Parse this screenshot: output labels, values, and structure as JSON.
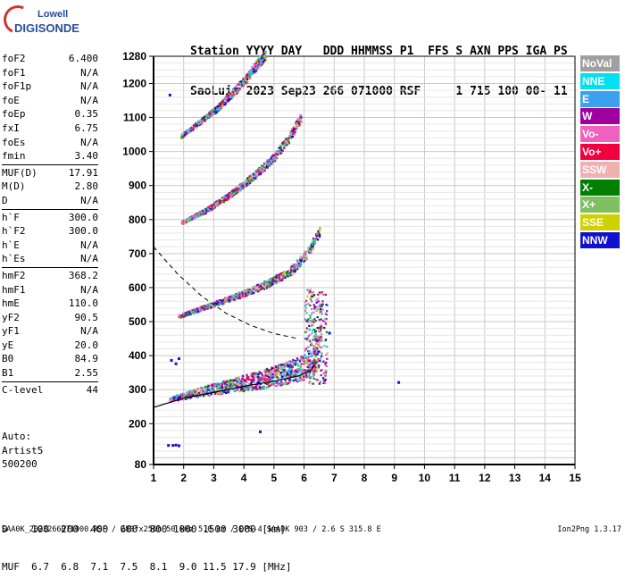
{
  "logo": {
    "line1": "Lowell",
    "line2": "DIGISONDE"
  },
  "header": {
    "line1": "Station YYYY DAY   DDD HHMMSS P1  FFS S AXN PPS IGA PS",
    "line2": "SaoLuis 2023 Sep23 266 071000 RSF     1 715 100 00- 11"
  },
  "params": [
    [
      {
        "k": "foF2",
        "v": "6.400"
      },
      {
        "k": "foF1",
        "v": "N/A"
      },
      {
        "k": "foF1p",
        "v": "N/A"
      },
      {
        "k": "foE",
        "v": "N/A"
      },
      {
        "k": "foEp",
        "v": "0.35"
      },
      {
        "k": "fxI",
        "v": "6.75"
      },
      {
        "k": "foEs",
        "v": "N/A"
      },
      {
        "k": "fmin",
        "v": "3.40"
      }
    ],
    [
      {
        "k": "MUF(D)",
        "v": "17.91"
      },
      {
        "k": "M(D)",
        "v": "2.80"
      },
      {
        "k": "D",
        "v": "N/A"
      }
    ],
    [
      {
        "k": "h`F",
        "v": "300.0"
      },
      {
        "k": "h`F2",
        "v": "300.0"
      },
      {
        "k": "h`E",
        "v": "N/A"
      },
      {
        "k": "h`Es",
        "v": "N/A"
      }
    ],
    [
      {
        "k": "hmF2",
        "v": "368.2"
      },
      {
        "k": "hmF1",
        "v": "N/A"
      },
      {
        "k": "hmE",
        "v": "110.0"
      },
      {
        "k": "yF2",
        "v": "90.5"
      },
      {
        "k": "yF1",
        "v": "N/A"
      },
      {
        "k": "yE",
        "v": "20.0"
      },
      {
        "k": "B0",
        "v": "84.9"
      },
      {
        "k": "B1",
        "v": "2.55"
      }
    ],
    [
      {
        "k": "C-level",
        "v": "44"
      }
    ]
  ],
  "auto": {
    "l1": "Auto:",
    "l2": "Artist5",
    "l3": "500200"
  },
  "legend": [
    {
      "label": "NoVal",
      "color": "#a0a0a0"
    },
    {
      "label": "NNE",
      "color": "#00e0f0"
    },
    {
      "label": "E",
      "color": "#3ca0f0"
    },
    {
      "label": "W",
      "color": "#a000a0"
    },
    {
      "label": "Vo-",
      "color": "#f060c0"
    },
    {
      "label": "Vo+",
      "color": "#f00040"
    },
    {
      "label": "SSW",
      "color": "#f0b0b0"
    },
    {
      "label": "X-",
      "color": "#008000"
    },
    {
      "label": "X+",
      "color": "#80c060"
    },
    {
      "label": "SSE",
      "color": "#d0d000"
    },
    {
      "label": "NNW",
      "color": "#1010d0"
    }
  ],
  "muf_table": {
    "d_label": "D  ",
    "d_values": [
      "100",
      "200",
      "400",
      "600",
      "800",
      "1000",
      "1500",
      "3000"
    ],
    "d_unit": "[km]",
    "muf_label": "MUF",
    "muf_values": [
      "6.7",
      "6.8",
      "7.1",
      "7.5",
      "8.1",
      "9.0",
      "11.5",
      "17.9"
    ],
    "muf_unit": "[MHz]"
  },
  "footer": "SAA0K_2023266071000.RSF / 280fx256h 50 kHz 5.0 km / DPS-4 SAA0K 903 / 2.6 S 315.8 E",
  "ion_version": "Ion2Png 1.3.17",
  "chart_data": {
    "type": "scatter",
    "xlim": [
      1,
      15
    ],
    "x_ticks": [
      1,
      2,
      3,
      4,
      5,
      6,
      7,
      8,
      9,
      10,
      11,
      12,
      13,
      14,
      15
    ],
    "ylim": [
      80,
      1280
    ],
    "y_ticks": [
      80,
      200,
      300,
      400,
      500,
      600,
      700,
      800,
      900,
      1000,
      1100,
      1200,
      1280
    ],
    "grid": true,
    "trace_bands": [
      {
        "name": "F2 O-trace",
        "x": [
          1.5,
          2.5,
          3.5,
          4.5,
          5.5,
          6.2,
          6.45,
          6.55
        ],
        "y": [
          270,
          290,
          305,
          320,
          340,
          360,
          400,
          480
        ]
      },
      {
        "name": "2nd hop",
        "x": [
          1.8,
          2.8,
          3.8,
          4.8,
          5.6,
          6.1,
          6.5
        ],
        "y": [
          515,
          545,
          575,
          610,
          650,
          700,
          760
        ]
      },
      {
        "name": "3rd hop",
        "x": [
          1.9,
          2.7,
          3.5,
          4.3,
          5.0,
          5.5,
          5.9
        ],
        "y": [
          790,
          825,
          870,
          925,
          980,
          1040,
          1100
        ]
      },
      {
        "name": "4th hop",
        "x": [
          1.9,
          2.5,
          3.1,
          3.6,
          4.1,
          4.4,
          4.7
        ],
        "y": [
          1045,
          1085,
          1125,
          1170,
          1215,
          1250,
          1280
        ]
      }
    ],
    "profile_line": {
      "x": [
        1,
        2,
        3,
        4,
        5,
        5.8,
        6.2,
        6.38
      ],
      "y": [
        248,
        275,
        292,
        310,
        325,
        340,
        355,
        375
      ]
    },
    "dashed_line": {
      "x": [
        1,
        1.8,
        2.6,
        3.4,
        4.2,
        5.0,
        5.8
      ],
      "y": [
        720,
        640,
        575,
        525,
        490,
        465,
        450
      ]
    }
  }
}
